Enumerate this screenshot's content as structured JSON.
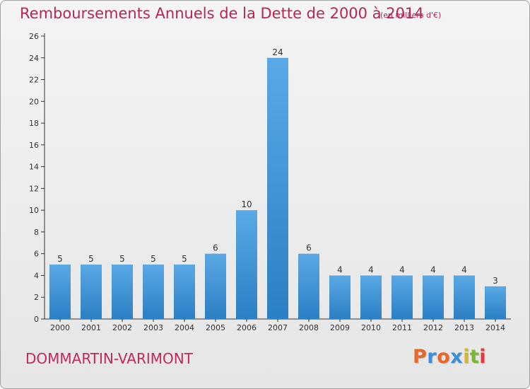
{
  "title": "Remboursements Annuels de la Dette de 2000 à 2014",
  "subtitle": "(en milliers d'€)",
  "commune": "DOMMARTIN-VARIMONT",
  "logo_text": "Proxiti",
  "colors": {
    "title": "#b5245a",
    "bar_top": "#5aa9e6",
    "bar_bottom": "#2b7fc4",
    "logo_letters": [
      "#e8682a",
      "#3a8fd6",
      "#e8682a",
      "#3a8fd6",
      "#d8b820",
      "#7ab830",
      "#e03a3a"
    ]
  },
  "chart_data": {
    "type": "bar",
    "categories": [
      "2000",
      "2001",
      "2002",
      "2003",
      "2004",
      "2005",
      "2006",
      "2007",
      "2008",
      "2009",
      "2010",
      "2011",
      "2012",
      "2013",
      "2014"
    ],
    "values": [
      5,
      5,
      5,
      5,
      5,
      6,
      10,
      24,
      6,
      4,
      4,
      4,
      4,
      4,
      3
    ],
    "data_labels": [
      "5",
      "5",
      "5",
      "5",
      "5",
      "6",
      "10",
      "24",
      "6",
      "4",
      "4",
      "4",
      "4",
      "4",
      "3"
    ],
    "yticks": [
      0,
      2,
      4,
      6,
      8,
      10,
      12,
      14,
      16,
      18,
      20,
      22,
      24,
      26
    ],
    "ylim": [
      0,
      26
    ],
    "xlabel": "",
    "ylabel": "",
    "grid": false
  }
}
